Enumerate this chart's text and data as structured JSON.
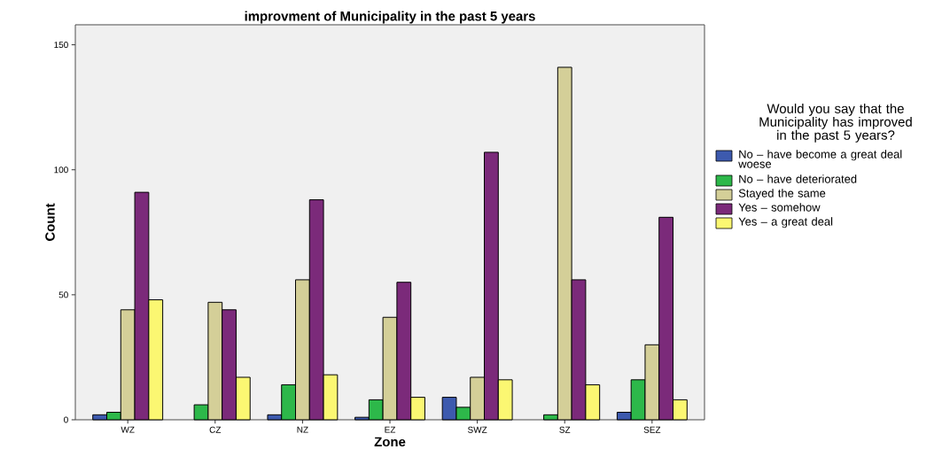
{
  "chart_data": {
    "type": "bar",
    "title": "improvment of Municipality in the past 5 years",
    "xlabel": "Zone",
    "ylabel": "Count",
    "legend_title": "Would you say that the Municipality has improved in the past 5 years?",
    "categories": [
      "WZ",
      "CZ",
      "NZ",
      "EZ",
      "SWZ",
      "SZ",
      "SEZ"
    ],
    "ylim": [
      0,
      158
    ],
    "yticks": [
      0,
      50,
      100,
      150
    ],
    "legend": "right",
    "series": [
      {
        "name": "No – have become a great deal woese",
        "color": "#3d5aae",
        "values": [
          2,
          null,
          2,
          1,
          9,
          null,
          3
        ]
      },
      {
        "name": "No – have deteriorated",
        "color": "#2db84a",
        "values": [
          3,
          6,
          14,
          8,
          5,
          2,
          16
        ]
      },
      {
        "name": "Stayed the same",
        "color": "#d4cf98",
        "values": [
          44,
          47,
          56,
          41,
          17,
          141,
          30
        ]
      },
      {
        "name": "Yes – somehow",
        "color": "#7b2a7a",
        "values": [
          91,
          44,
          88,
          55,
          107,
          56,
          81
        ]
      },
      {
        "name": "Yes – a great deal",
        "color": "#fbf772",
        "values": [
          48,
          17,
          18,
          9,
          16,
          14,
          8
        ]
      }
    ]
  }
}
